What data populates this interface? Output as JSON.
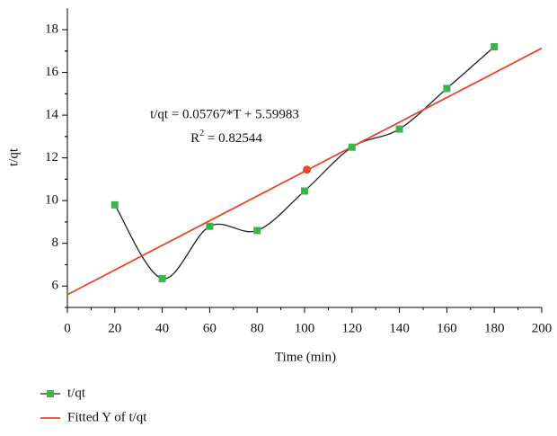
{
  "chart_data": {
    "type": "line",
    "x_label": "Time (min)",
    "y_label": "t/qt",
    "xlim": [
      0,
      200
    ],
    "xticks": [
      0,
      20,
      40,
      60,
      80,
      100,
      120,
      140,
      160,
      180,
      200
    ],
    "ylim": [
      5,
      19
    ],
    "yticks": [
      6,
      8,
      10,
      12,
      14,
      16,
      18
    ],
    "series": [
      {
        "name": "t/qt",
        "color": "#222222",
        "marker_color": "#3cb44b",
        "smooth": true,
        "x": [
          20,
          40,
          60,
          80,
          100,
          120,
          140,
          160,
          180
        ],
        "values": [
          9.8,
          6.35,
          8.8,
          8.6,
          10.45,
          12.5,
          13.35,
          15.25,
          17.2
        ]
      },
      {
        "name": "Fitted Y of t/qt",
        "color": "#e8452c",
        "x": [
          0,
          200
        ],
        "values": [
          5.6,
          17.13
        ]
      }
    ],
    "highlight": {
      "x": 101,
      "y": 11.45,
      "color": "#e8452c"
    },
    "annotation": "t/qt = 0.05767*T + 5.59983",
    "r2_label": {
      "base": "R",
      "sup": "2",
      "rest": " = 0.82544"
    }
  }
}
